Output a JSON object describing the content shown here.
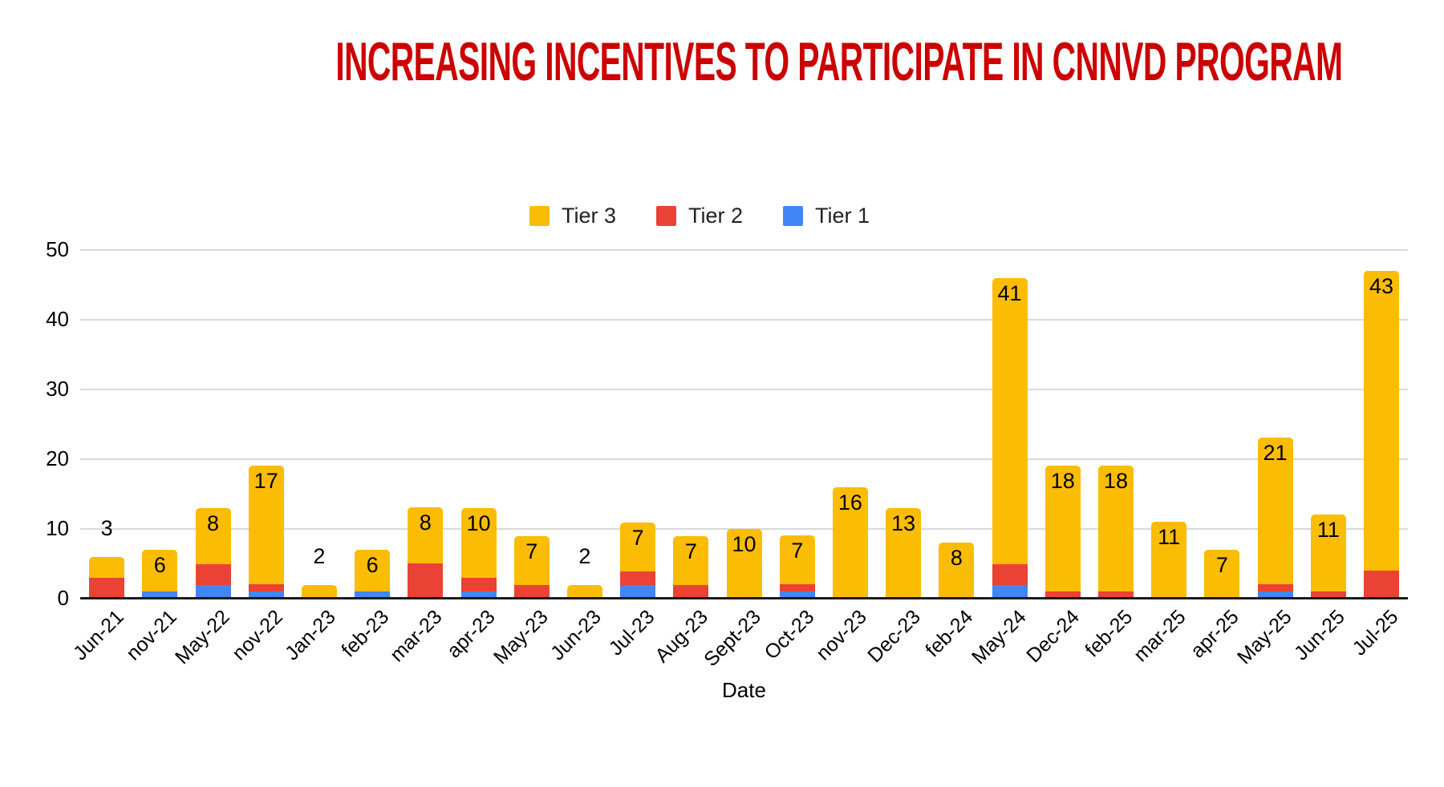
{
  "chart_data": {
    "type": "bar",
    "stacked": true,
    "title": "INCREASING INCENTIVES TO PARTICIPATE IN CNNVD PROGRAM",
    "title_color": "#CC0000",
    "xlabel": "Date",
    "ylabel": "",
    "ylim": [
      0,
      50
    ],
    "yticks": [
      0,
      10,
      20,
      30,
      40,
      50
    ],
    "grid": true,
    "legend_position": "top",
    "categories": [
      "Jun-21",
      "nov-21",
      "May-22",
      "nov-22",
      "Jan-23",
      "feb-23",
      "mar-23",
      "apr-23",
      "May-23",
      "Jun-23",
      "Jul-23",
      "Aug-23",
      "Sept-23",
      "Oct-23",
      "nov-23",
      "Dec-23",
      "feb-24",
      "May-24",
      "Dec-24",
      "feb-25",
      "mar-25",
      "apr-25",
      "May-25",
      "Jun-25",
      "Jul-25"
    ],
    "series": [
      {
        "name": "Tier 1",
        "color": "#4285F4",
        "values": [
          0,
          1,
          2,
          1,
          0,
          1,
          0,
          1,
          0,
          0,
          2,
          0,
          0,
          1,
          0,
          0,
          0,
          2,
          0,
          0,
          0,
          0,
          1,
          0,
          0
        ]
      },
      {
        "name": "Tier 2",
        "color": "#EA4335",
        "values": [
          3,
          0,
          3,
          1,
          0,
          0,
          5,
          2,
          2,
          0,
          2,
          2,
          0,
          1,
          0,
          0,
          0,
          3,
          1,
          1,
          0,
          0,
          1,
          1,
          4
        ]
      },
      {
        "name": "Tier 3",
        "color": "#FBBC04",
        "values": [
          3,
          6,
          8,
          17,
          2,
          6,
          8,
          10,
          7,
          2,
          7,
          7,
          10,
          7,
          16,
          13,
          8,
          41,
          18,
          18,
          11,
          7,
          21,
          11,
          43
        ]
      }
    ],
    "totals": [
      6,
      7,
      13,
      19,
      2,
      7,
      13,
      13,
      9,
      2,
      11,
      9,
      10,
      9,
      16,
      13,
      8,
      46,
      19,
      19,
      11,
      7,
      23,
      12,
      47
    ],
    "data_labels": {
      "series": "Tier 3",
      "placement": "inside top of yellow segment; above bar when Tier 3 value < 5"
    }
  },
  "legend": {
    "items": [
      {
        "label": "Tier 3"
      },
      {
        "label": "Tier 2"
      },
      {
        "label": "Tier 1"
      }
    ]
  }
}
